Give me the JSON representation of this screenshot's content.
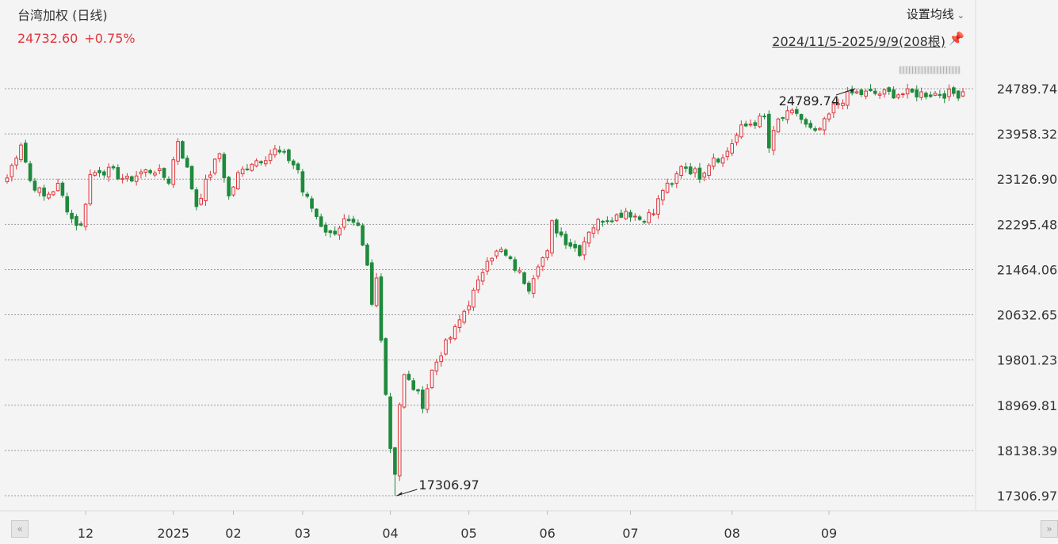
{
  "header": {
    "title": "台湾加权 (日线)",
    "last_price": "24732.60",
    "change_pct": "+0.75%",
    "ma_button": "设置均线",
    "date_range": "2024/11/5-2025/9/9(208根)"
  },
  "colors": {
    "up": "#e0353b",
    "down": "#1e8a3c",
    "grid": "#9a9a9a",
    "bg": "#f4f4f4"
  },
  "chart_data": {
    "type": "candlestick",
    "y_axis": {
      "min": 17306.97,
      "max": 24789.74,
      "ticks": [
        "24789.74",
        "23958.32",
        "23126.90",
        "22295.48",
        "21464.06",
        "20632.65",
        "19801.23",
        "18969.81",
        "18138.39",
        "17306.97"
      ]
    },
    "x_axis": {
      "tick_labels": [
        {
          "label": "12",
          "bar": 17
        },
        {
          "label": "2025",
          "bar": 36
        },
        {
          "label": "02",
          "bar": 49
        },
        {
          "label": "03",
          "bar": 64
        },
        {
          "label": "04",
          "bar": 83
        },
        {
          "label": "05",
          "bar": 100
        },
        {
          "label": "06",
          "bar": 117
        },
        {
          "label": "07",
          "bar": 135
        },
        {
          "label": "08",
          "bar": 157
        },
        {
          "label": "09",
          "bar": 178
        }
      ]
    },
    "annotations": {
      "high": {
        "label": "24789.74",
        "bar": 184
      },
      "low": {
        "label": "17306.97",
        "bar": 84
      }
    },
    "keyframes": [
      [
        0,
        23150
      ],
      [
        3,
        23800
      ],
      [
        5,
        23100
      ],
      [
        8,
        22800
      ],
      [
        11,
        23000
      ],
      [
        14,
        22400
      ],
      [
        16,
        22250
      ],
      [
        18,
        23200
      ],
      [
        20,
        23300
      ],
      [
        23,
        23250
      ],
      [
        26,
        23100
      ],
      [
        29,
        23250
      ],
      [
        32,
        23300
      ],
      [
        35,
        23100
      ],
      [
        37,
        23850
      ],
      [
        39,
        23300
      ],
      [
        41,
        22650
      ],
      [
        44,
        23250
      ],
      [
        46,
        23600
      ],
      [
        48,
        22800
      ],
      [
        50,
        23200
      ],
      [
        53,
        23450
      ],
      [
        55,
        23500
      ],
      [
        58,
        23650
      ],
      [
        61,
        23500
      ],
      [
        63,
        23300
      ],
      [
        64,
        22900
      ],
      [
        66,
        22600
      ],
      [
        68,
        22300
      ],
      [
        70,
        22100
      ],
      [
        73,
        22350
      ],
      [
        76,
        22200
      ],
      [
        78,
        21500
      ],
      [
        79,
        20800
      ],
      [
        80,
        21300
      ],
      [
        82,
        19200
      ],
      [
        83,
        18200
      ],
      [
        84,
        17400
      ],
      [
        85,
        19000
      ],
      [
        86,
        19500
      ],
      [
        88,
        19300
      ],
      [
        90,
        19000
      ],
      [
        92,
        19600
      ],
      [
        94,
        19950
      ],
      [
        97,
        20350
      ],
      [
        99,
        20700
      ],
      [
        102,
        21200
      ],
      [
        104,
        21700
      ],
      [
        107,
        21800
      ],
      [
        110,
        21500
      ],
      [
        113,
        21150
      ],
      [
        115,
        21600
      ],
      [
        117,
        21750
      ],
      [
        118,
        22300
      ],
      [
        121,
        22000
      ],
      [
        124,
        21800
      ],
      [
        126,
        22200
      ],
      [
        129,
        22400
      ],
      [
        132,
        22450
      ],
      [
        134,
        22550
      ],
      [
        137,
        22400
      ],
      [
        140,
        22500
      ],
      [
        142,
        22950
      ],
      [
        144,
        23000
      ],
      [
        146,
        23400
      ],
      [
        148,
        23300
      ],
      [
        150,
        23200
      ],
      [
        153,
        23550
      ],
      [
        155,
        23500
      ],
      [
        157,
        23800
      ],
      [
        159,
        24050
      ],
      [
        161,
        24150
      ],
      [
        164,
        24250
      ],
      [
        165,
        23700
      ],
      [
        167,
        24200
      ],
      [
        169,
        24300
      ],
      [
        171,
        24350
      ],
      [
        173,
        24100
      ],
      [
        175,
        23950
      ],
      [
        177,
        24150
      ],
      [
        179,
        24450
      ],
      [
        181,
        24600
      ],
      [
        183,
        24700
      ]
    ]
  }
}
